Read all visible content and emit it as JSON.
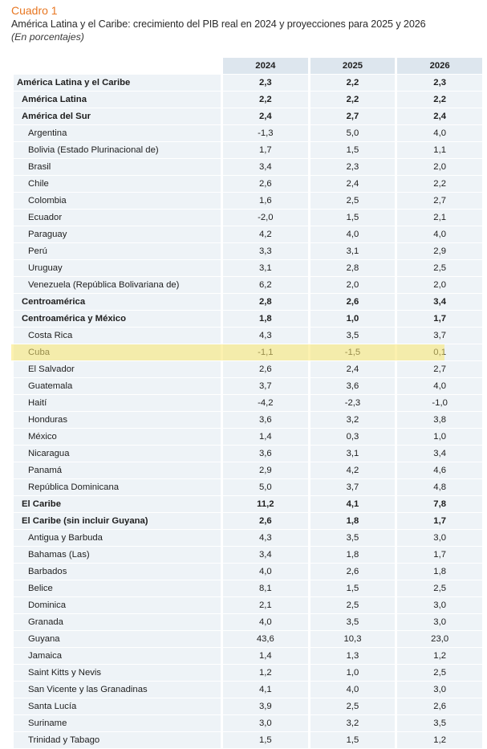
{
  "header": {
    "label": "Cuadro 1",
    "title": "América Latina y el Caribe: crecimiento del PIB real en 2024 y proyecciones para 2025 y 2026",
    "subtitle": "(En porcentajes)"
  },
  "colors": {
    "accent": "#e87722",
    "header_bg": "#dde6ee",
    "cell_bg": "#eef3f7",
    "highlight": "#fae66e"
  },
  "table": {
    "columns": [
      "2024",
      "2025",
      "2026"
    ],
    "highlighted_row": "Cuba",
    "rows": [
      {
        "name": "América Latina y el Caribe",
        "level": 0,
        "v2024": "2,3",
        "v2025": "2,2",
        "v2026": "2,3"
      },
      {
        "name": "América Latina",
        "level": 1,
        "v2024": "2,2",
        "v2025": "2,2",
        "v2026": "2,2"
      },
      {
        "name": "América del Sur",
        "level": 1,
        "v2024": "2,4",
        "v2025": "2,7",
        "v2026": "2,4"
      },
      {
        "name": "Argentina",
        "level": 2,
        "v2024": "-1,3",
        "v2025": "5,0",
        "v2026": "4,0"
      },
      {
        "name": "Bolivia (Estado Plurinacional de)",
        "level": 2,
        "v2024": "1,7",
        "v2025": "1,5",
        "v2026": "1,1"
      },
      {
        "name": "Brasil",
        "level": 2,
        "v2024": "3,4",
        "v2025": "2,3",
        "v2026": "2,0"
      },
      {
        "name": "Chile",
        "level": 2,
        "v2024": "2,6",
        "v2025": "2,4",
        "v2026": "2,2"
      },
      {
        "name": "Colombia",
        "level": 2,
        "v2024": "1,6",
        "v2025": "2,5",
        "v2026": "2,7"
      },
      {
        "name": "Ecuador",
        "level": 2,
        "v2024": "-2,0",
        "v2025": "1,5",
        "v2026": "2,1"
      },
      {
        "name": "Paraguay",
        "level": 2,
        "v2024": "4,2",
        "v2025": "4,0",
        "v2026": "4,0"
      },
      {
        "name": "Perú",
        "level": 2,
        "v2024": "3,3",
        "v2025": "3,1",
        "v2026": "2,9"
      },
      {
        "name": "Uruguay",
        "level": 2,
        "v2024": "3,1",
        "v2025": "2,8",
        "v2026": "2,5"
      },
      {
        "name": "Venezuela (República Bolivariana de)",
        "level": 2,
        "v2024": "6,2",
        "v2025": "2,0",
        "v2026": "2,0"
      },
      {
        "name": "Centroamérica",
        "level": 1,
        "v2024": "2,8",
        "v2025": "2,6",
        "v2026": "3,4"
      },
      {
        "name": "Centroamérica y México",
        "level": 1,
        "v2024": "1,8",
        "v2025": "1,0",
        "v2026": "1,7"
      },
      {
        "name": "Costa Rica",
        "level": 2,
        "v2024": "4,3",
        "v2025": "3,5",
        "v2026": "3,7"
      },
      {
        "name": "Cuba",
        "level": 2,
        "v2024": "-1,1",
        "v2025": "-1,5",
        "v2026": "0,1"
      },
      {
        "name": "El Salvador",
        "level": 2,
        "v2024": "2,6",
        "v2025": "2,4",
        "v2026": "2,7"
      },
      {
        "name": "Guatemala",
        "level": 2,
        "v2024": "3,7",
        "v2025": "3,6",
        "v2026": "4,0"
      },
      {
        "name": "Haití",
        "level": 2,
        "v2024": "-4,2",
        "v2025": "-2,3",
        "v2026": "-1,0"
      },
      {
        "name": "Honduras",
        "level": 2,
        "v2024": "3,6",
        "v2025": "3,2",
        "v2026": "3,8"
      },
      {
        "name": "México",
        "level": 2,
        "v2024": "1,4",
        "v2025": "0,3",
        "v2026": "1,0"
      },
      {
        "name": "Nicaragua",
        "level": 2,
        "v2024": "3,6",
        "v2025": "3,1",
        "v2026": "3,4"
      },
      {
        "name": "Panamá",
        "level": 2,
        "v2024": "2,9",
        "v2025": "4,2",
        "v2026": "4,6"
      },
      {
        "name": "República Dominicana",
        "level": 2,
        "v2024": "5,0",
        "v2025": "3,7",
        "v2026": "4,8"
      },
      {
        "name": "El Caribe",
        "level": 1,
        "v2024": "11,2",
        "v2025": "4,1",
        "v2026": "7,8"
      },
      {
        "name": "El Caribe (sin incluir Guyana)",
        "level": 1,
        "v2024": "2,6",
        "v2025": "1,8",
        "v2026": "1,7"
      },
      {
        "name": "Antigua y Barbuda",
        "level": 2,
        "v2024": "4,3",
        "v2025": "3,5",
        "v2026": "3,0"
      },
      {
        "name": "Bahamas (Las)",
        "level": 2,
        "v2024": "3,4",
        "v2025": "1,8",
        "v2026": "1,7"
      },
      {
        "name": "Barbados",
        "level": 2,
        "v2024": "4,0",
        "v2025": "2,6",
        "v2026": "1,8"
      },
      {
        "name": "Belice",
        "level": 2,
        "v2024": "8,1",
        "v2025": "1,5",
        "v2026": "2,5"
      },
      {
        "name": "Dominica",
        "level": 2,
        "v2024": "2,1",
        "v2025": "2,5",
        "v2026": "3,0"
      },
      {
        "name": "Granada",
        "level": 2,
        "v2024": "4,0",
        "v2025": "3,5",
        "v2026": "3,0"
      },
      {
        "name": "Guyana",
        "level": 2,
        "v2024": "43,6",
        "v2025": "10,3",
        "v2026": "23,0"
      },
      {
        "name": "Jamaica",
        "level": 2,
        "v2024": "1,4",
        "v2025": "1,3",
        "v2026": "1,2"
      },
      {
        "name": "Saint Kitts y Nevis",
        "level": 2,
        "v2024": "1,2",
        "v2025": "1,0",
        "v2026": "2,5"
      },
      {
        "name": "San Vicente y las Granadinas",
        "level": 2,
        "v2024": "4,1",
        "v2025": "4,0",
        "v2026": "3,0"
      },
      {
        "name": "Santa Lucía",
        "level": 2,
        "v2024": "3,9",
        "v2025": "2,5",
        "v2026": "2,6"
      },
      {
        "name": "Suriname",
        "level": 2,
        "v2024": "3,0",
        "v2025": "3,2",
        "v2026": "3,5"
      },
      {
        "name": "Trinidad y Tabago",
        "level": 2,
        "v2024": "1,5",
        "v2025": "1,5",
        "v2026": "1,2"
      }
    ]
  }
}
